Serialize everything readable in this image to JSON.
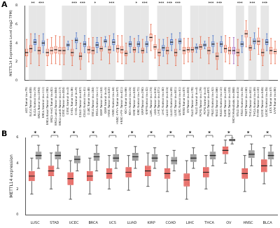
{
  "chart_data": [
    {
      "type": "box",
      "title": "A",
      "y_label": "METTL14 Expression Level (log2 TPM)",
      "categories": [
        "ACC.Tumor (n=79)",
        "BLCA.Tumor (n=408)",
        "BLCA.Normal (n=19)",
        "BRCA.Tumor (n=1093)",
        "BRCA.Normal (n=112)",
        "BRCA-Basal.Tumor (n=190)",
        "BRCA-Her2.Tumor (n=82)",
        "BRCA-LumA.Tumor (n=564)",
        "BRCA-LumB.Tumor (n=217)",
        "CESC.Tumor (n=304)",
        "CESC.Normal (n=3)",
        "CHOL.Tumor (n=36)",
        "CHOL.Normal (n=9)",
        "COAD.Tumor (n=457)",
        "COAD.Normal (n=41)",
        "DLBC.Tumor (n=48)",
        "ESCA.Tumor (n=184)",
        "ESCA.Normal (n=11)",
        "GBM.Tumor (n=153)",
        "GBM.Normal (n=5)",
        "HNSC.Tumor (n=520)",
        "HNSC.Normal (n=44)",
        "HNSC-HPV+.Tumor (n=97)",
        "HNSC-HPV-.Tumor (n=421)",
        "KICH.Tumor (n=66)",
        "KICH.Normal (n=25)",
        "KIRC.Tumor (n=533)",
        "KIRC.Normal (n=72)",
        "KIRP.Tumor (n=290)",
        "KIRP.Normal (n=32)",
        "LAML.Tumor (n=173)",
        "LGG.Tumor (n=516)",
        "LIHC.Tumor (n=371)",
        "LIHC.Normal (n=50)",
        "LUAD.Tumor (n=515)",
        "LUAD.Normal (n=59)",
        "LUSC.Tumor (n=501)",
        "LUSC.Normal (n=51)",
        "MESO.Tumor (n=87)",
        "OV.Tumor (n=303)",
        "PAAD.Tumor (n=178)",
        "PAAD.Normal (n=4)",
        "PCPG.Tumor (n=179)",
        "PCPG.Normal (n=3)",
        "PRAD.Tumor (n=497)",
        "PRAD.Normal (n=52)",
        "READ.Tumor (n=166)",
        "READ.Normal (n=10)",
        "SARC.Tumor (n=259)",
        "SKCM.Tumor (n=103)",
        "SKCM.Metastasis (n=368)",
        "STAD.Tumor (n=415)",
        "STAD.Normal (n=35)",
        "TGCT.Tumor (n=150)",
        "THCA.Tumor (n=501)",
        "THCA.Normal (n=59)",
        "THYM.Tumor (n=120)",
        "UCEC.Tumor (n=545)",
        "UCEC.Normal (n=35)",
        "UCS.Tumor (n=57)",
        "UVM.Tumor (n=80)"
      ],
      "colors": [
        "#e8694a",
        "#e8694a",
        "#4a74c9",
        "#e8694a",
        "#4a74c9",
        "#e8694a",
        "#e8694a",
        "#e8694a",
        "#e8694a",
        "#e8694a",
        "#4a74c9",
        "#e8694a",
        "#4a74c9",
        "#e8694a",
        "#4a74c9",
        "#e8694a",
        "#e8694a",
        "#4a74c9",
        "#e8694a",
        "#4a74c9",
        "#e8694a",
        "#4a74c9",
        "#e8694a",
        "#e8694a",
        "#e8694a",
        "#4a74c9",
        "#e8694a",
        "#4a74c9",
        "#e8694a",
        "#4a74c9",
        "#e8694a",
        "#e8694a",
        "#e8694a",
        "#4a74c9",
        "#e8694a",
        "#4a74c9",
        "#e8694a",
        "#4a74c9",
        "#e8694a",
        "#e8694a",
        "#e8694a",
        "#4a74c9",
        "#e8694a",
        "#4a74c9",
        "#e8694a",
        "#4a74c9",
        "#e8694a",
        "#4a74c9",
        "#e8694a",
        "#e8694a",
        "#9b59b6",
        "#e8694a",
        "#4a74c9",
        "#e8694a",
        "#e8694a",
        "#4a74c9",
        "#e8694a",
        "#e8694a",
        "#4a74c9",
        "#e8694a",
        "#e8694a"
      ],
      "low": [
        1.5,
        1.8,
        3.2,
        1.6,
        3.0,
        1.6,
        1.8,
        1.8,
        1.7,
        1.7,
        3.3,
        1.6,
        3.4,
        1.2,
        3.0,
        2.0,
        1.8,
        3.0,
        2.2,
        3.6,
        1.8,
        3.2,
        2.0,
        1.8,
        1.8,
        3.0,
        2.0,
        3.0,
        2.0,
        3.0,
        3.2,
        2.4,
        1.6,
        2.6,
        1.8,
        3.2,
        1.6,
        3.3,
        1.8,
        2.0,
        2.0,
        3.0,
        2.4,
        3.4,
        1.8,
        3.0,
        1.2,
        3.0,
        2.0,
        1.8,
        1.8,
        1.6,
        3.0,
        3.6,
        2.2,
        3.4,
        2.8,
        1.6,
        3.2,
        1.8,
        1.8
      ],
      "q1": [
        2.6,
        3.0,
        3.8,
        2.8,
        3.7,
        2.6,
        2.8,
        2.9,
        2.8,
        2.8,
        3.6,
        2.6,
        4.0,
        2.2,
        3.6,
        2.9,
        2.8,
        3.5,
        3.1,
        4.0,
        2.9,
        3.8,
        3.0,
        2.9,
        2.6,
        3.6,
        3.0,
        3.6,
        2.9,
        3.6,
        4.2,
        3.3,
        2.6,
        3.2,
        2.8,
        3.8,
        2.6,
        3.9,
        2.8,
        3.0,
        3.0,
        3.3,
        3.3,
        3.6,
        2.8,
        3.6,
        2.2,
        3.6,
        3.0,
        2.8,
        2.8,
        2.6,
        3.6,
        4.6,
        3.2,
        3.9,
        3.8,
        2.6,
        3.8,
        2.8,
        2.8
      ],
      "median": [
        3.0,
        3.4,
        4.1,
        3.2,
        4.0,
        3.0,
        3.2,
        3.3,
        3.2,
        3.2,
        3.8,
        3.0,
        4.3,
        2.6,
        3.9,
        3.3,
        3.2,
        3.8,
        3.4,
        4.2,
        3.3,
        4.1,
        3.4,
        3.3,
        2.9,
        3.9,
        3.3,
        3.9,
        3.2,
        3.9,
        4.6,
        3.6,
        3.0,
        3.5,
        3.2,
        4.1,
        3.0,
        4.2,
        3.2,
        3.3,
        3.3,
        3.5,
        3.6,
        3.8,
        3.2,
        3.9,
        2.6,
        3.9,
        3.4,
        3.2,
        3.2,
        3.0,
        3.9,
        5.0,
        3.5,
        4.2,
        4.2,
        3.0,
        4.1,
        3.2,
        3.1
      ],
      "q3": [
        3.4,
        3.8,
        4.4,
        3.6,
        4.3,
        3.4,
        3.6,
        3.7,
        3.6,
        3.6,
        4.0,
        3.4,
        4.6,
        3.0,
        4.2,
        3.7,
        3.6,
        4.1,
        3.7,
        4.4,
        3.7,
        4.4,
        3.8,
        3.7,
        3.2,
        4.2,
        3.6,
        4.2,
        3.5,
        4.2,
        5.0,
        3.9,
        3.4,
        3.8,
        3.6,
        4.4,
        3.4,
        4.5,
        3.6,
        3.6,
        3.6,
        3.7,
        3.9,
        4.0,
        3.6,
        4.2,
        3.0,
        4.2,
        3.8,
        3.6,
        3.6,
        3.4,
        4.2,
        5.4,
        3.8,
        4.5,
        4.6,
        3.4,
        4.4,
        3.6,
        3.4
      ],
      "high": [
        4.4,
        5.0,
        5.0,
        4.8,
        5.0,
        4.4,
        4.6,
        4.8,
        4.7,
        4.7,
        4.2,
        4.3,
        5.1,
        4.0,
        4.8,
        4.5,
        4.6,
        4.6,
        4.6,
        4.7,
        4.8,
        5.0,
        4.8,
        4.8,
        4.0,
        4.7,
        4.5,
        4.8,
        4.4,
        4.7,
        6.0,
        4.8,
        4.4,
        4.4,
        4.6,
        5.0,
        4.4,
        5.1,
        4.5,
        4.5,
        4.5,
        3.9,
        4.7,
        4.2,
        4.6,
        4.8,
        4.0,
        4.7,
        4.8,
        4.6,
        4.6,
        4.4,
        4.8,
        6.4,
        4.6,
        5.1,
        5.6,
        4.4,
        5.0,
        4.5,
        4.2
      ],
      "significance": [
        null,
        "**",
        null,
        "***",
        null,
        null,
        null,
        null,
        null,
        null,
        null,
        "***",
        null,
        "***",
        null,
        null,
        "*",
        null,
        null,
        null,
        "***",
        null,
        null,
        null,
        null,
        null,
        "*",
        null,
        "***",
        null,
        null,
        null,
        "***",
        null,
        "***",
        null,
        "***",
        null,
        null,
        null,
        null,
        null,
        null,
        null,
        "***",
        null,
        "***",
        null,
        null,
        null,
        null,
        "***",
        null,
        null,
        "***",
        null,
        null,
        "***",
        null,
        null,
        null
      ],
      "ylim": [
        0,
        8
      ],
      "yticks": [
        0,
        2,
        4,
        6,
        8
      ],
      "grid": false
    },
    {
      "type": "box",
      "title": "B",
      "y_label": "METTL14 expression",
      "categories": [
        "LUSC",
        "STAD",
        "UCEC",
        "BRCA",
        "UCS",
        "LUAD",
        "KIRP",
        "COAD",
        "LIHC",
        "THCA",
        "OV",
        "HNSC",
        "BLCA"
      ],
      "series": [
        {
          "color": "#e0413a",
          "low": [
            1.6,
            2.0,
            1.2,
            1.6,
            2.0,
            1.9,
            2.2,
            1.8,
            1.2,
            2.0,
            4.0,
            1.8,
            2.4
          ],
          "q1": [
            2.6,
            3.0,
            2.3,
            2.6,
            2.8,
            2.9,
            3.0,
            2.8,
            2.2,
            2.9,
            4.7,
            2.8,
            3.3
          ],
          "median": [
            3.0,
            3.4,
            2.8,
            3.0,
            3.2,
            3.3,
            3.4,
            3.2,
            2.7,
            3.3,
            5.0,
            3.2,
            3.8
          ],
          "q3": [
            3.4,
            3.8,
            3.3,
            3.4,
            3.6,
            3.7,
            3.8,
            3.6,
            3.2,
            3.7,
            5.3,
            3.6,
            4.3
          ],
          "high": [
            4.4,
            4.8,
            4.2,
            4.4,
            4.6,
            4.6,
            4.8,
            4.6,
            4.2,
            4.6,
            5.8,
            4.6,
            5.2
          ]
        },
        {
          "color": "#808080",
          "low": [
            3.6,
            3.6,
            3.4,
            3.4,
            3.6,
            3.6,
            3.6,
            3.4,
            3.6,
            3.8,
            5.5,
            3.8,
            3.8
          ],
          "q1": [
            4.3,
            4.3,
            4.0,
            4.2,
            4.1,
            4.2,
            4.1,
            3.9,
            4.1,
            4.3,
            5.7,
            4.4,
            4.3
          ],
          "median": [
            4.6,
            4.6,
            4.3,
            4.5,
            4.4,
            4.5,
            4.4,
            4.2,
            4.4,
            4.6,
            5.8,
            4.7,
            4.6
          ],
          "q3": [
            4.9,
            4.9,
            4.6,
            4.8,
            4.7,
            4.8,
            4.7,
            4.5,
            4.7,
            4.9,
            5.9,
            5.0,
            4.9
          ],
          "high": [
            5.4,
            5.4,
            5.1,
            5.4,
            5.2,
            5.3,
            5.2,
            5.0,
            5.2,
            5.4,
            6.0,
            5.5,
            5.4
          ]
        }
      ],
      "significance": [
        "*",
        "*",
        "*",
        "*",
        "*",
        "*",
        "*",
        "*",
        "*",
        "*",
        "*",
        "*",
        "*"
      ],
      "ylim": [
        0,
        6
      ],
      "yticks": [
        0,
        2,
        4,
        6
      ],
      "grid": false
    }
  ]
}
